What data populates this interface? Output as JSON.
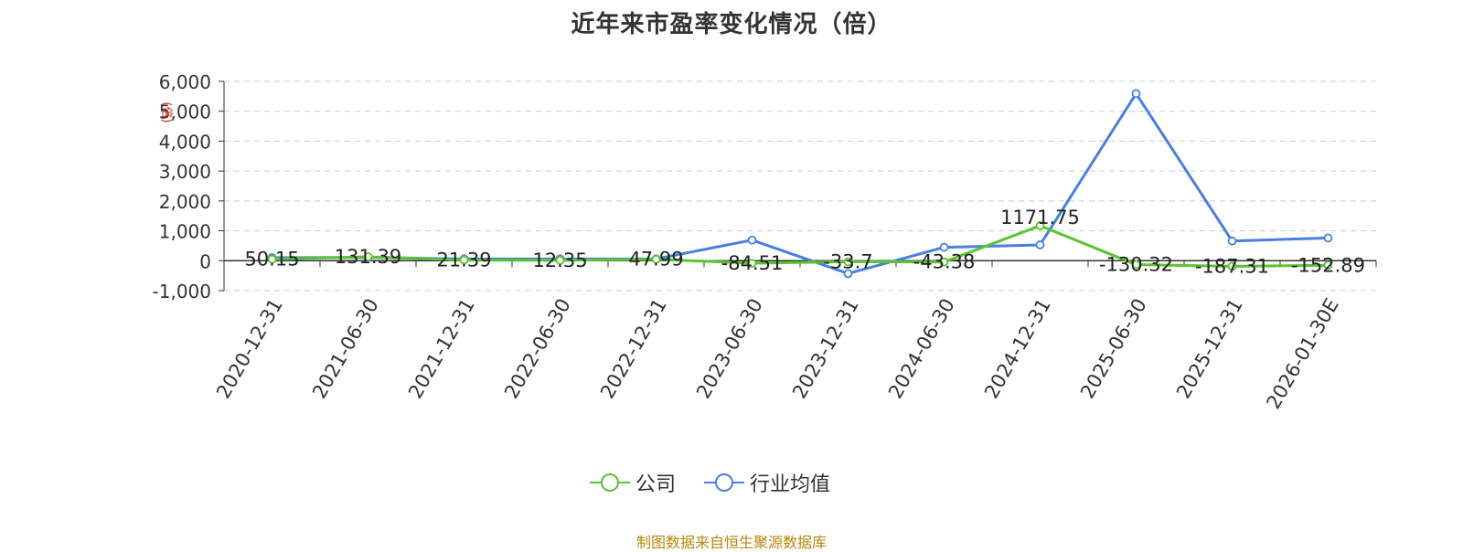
{
  "title": "近年来市盈率变化情况（倍）",
  "source": "制图数据来自恒生聚源数据库",
  "legend": [
    {
      "name": "公司",
      "color": "#5bc42e"
    },
    {
      "name": "行业均值",
      "color": "#4a7fe0"
    }
  ],
  "y_unit_mark": "(倍)",
  "chart_data": {
    "type": "line",
    "title": "近年来市盈率变化情况（倍）",
    "categories": [
      "2020-12-31",
      "2021-06-30",
      "2021-12-31",
      "2022-06-30",
      "2022-12-31",
      "2023-06-30",
      "2023-12-31",
      "2024-06-30",
      "2024-12-31",
      "2025-06-30",
      "2025-12-31",
      "2026-01-30E"
    ],
    "ylim": [
      -1000,
      6000
    ],
    "yticks": [
      -1000,
      0,
      1000,
      2000,
      3000,
      4000,
      5000,
      6000
    ],
    "ytick_labels": [
      "-1,000",
      "0",
      "1,000",
      "2,000",
      "3,000",
      "4,000",
      "5,000",
      "6,000"
    ],
    "grid": true,
    "legend_position": "bottom",
    "series": [
      {
        "name": "公司",
        "color": "#5bc42e",
        "values": [
          50.15,
          131.39,
          21.39,
          12.35,
          47.99,
          -84.51,
          -33.7,
          -43.38,
          1171.75,
          -130.32,
          -187.31,
          -152.89
        ],
        "labels": [
          "50.15",
          "131.39",
          "21.39",
          "12.35",
          "47.99",
          "-84.51",
          "-33.7",
          "-43.38",
          "1171.75",
          "-130.32",
          "-187.31",
          "-152.89"
        ]
      },
      {
        "name": "行业均值",
        "color": "#4a7fe0",
        "values": [
          100,
          110,
          60,
          60,
          60,
          690,
          -430,
          450,
          530,
          5590,
          660,
          760
        ]
      }
    ]
  }
}
